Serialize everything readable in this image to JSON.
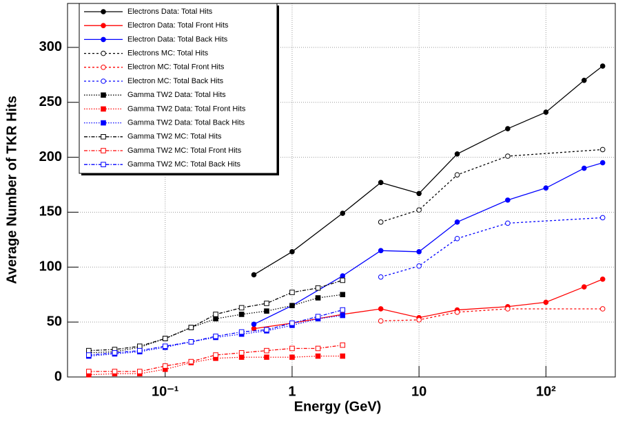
{
  "chart_data": {
    "type": "line",
    "x_label": "Energy (GeV)",
    "y_label": "Average Number of TKR Hits",
    "xlog": true,
    "grid": true,
    "legend": "top-left",
    "xlim": [
      0.017,
      352
    ],
    "ylim": [
      0,
      340
    ],
    "xticks": [
      {
        "value": 0.1,
        "label": "10⁻¹"
      },
      1,
      10,
      {
        "value": 100,
        "label": "10²"
      }
    ],
    "yticks": [
      0,
      50,
      100,
      150,
      200,
      250,
      300
    ],
    "series": [
      {
        "name": "Electrons Data: Total Hits",
        "color": "#000000",
        "dash": "solid",
        "marker": "circle",
        "x": [
          0.5,
          1,
          2.5,
          5,
          10,
          20,
          50,
          100,
          200,
          280
        ],
        "values": [
          93,
          114,
          149,
          177,
          167,
          203,
          226,
          241,
          270,
          283
        ]
      },
      {
        "name": "Electron Data: Total Front Hits",
        "color": "#ff0000",
        "dash": "solid",
        "marker": "circle",
        "x": [
          0.5,
          1,
          2.5,
          5,
          10,
          20,
          50,
          100,
          200,
          280
        ],
        "values": [
          44,
          49,
          57,
          62,
          54,
          61,
          64,
          68,
          82,
          89
        ]
      },
      {
        "name": "Electron Data: Total Back Hits",
        "color": "#0000ff",
        "dash": "solid",
        "marker": "circle",
        "x": [
          0.5,
          1,
          2.5,
          5,
          10,
          20,
          50,
          100,
          200,
          280
        ],
        "values": [
          48,
          65,
          92,
          115,
          114,
          141,
          161,
          172,
          190,
          195
        ]
      },
      {
        "name": "Electrons MC: Total Hits",
        "color": "#000000",
        "dash": "dashed",
        "marker": "open-circle",
        "x": [
          5,
          10,
          20,
          50,
          280
        ],
        "values": [
          141,
          152,
          184,
          201,
          207
        ]
      },
      {
        "name": "Electron MC: Total Front Hits",
        "color": "#ff0000",
        "dash": "dashed",
        "marker": "open-circle",
        "x": [
          5,
          10,
          20,
          50,
          280
        ],
        "values": [
          51,
          52,
          59,
          62,
          62
        ]
      },
      {
        "name": "Electron MC: Total Back Hits",
        "color": "#0000ff",
        "dash": "dashed",
        "marker": "open-circle",
        "x": [
          5,
          10,
          20,
          50,
          280
        ],
        "values": [
          91,
          101,
          126,
          140,
          145
        ]
      },
      {
        "name": "Gamma TW2 Data: Total Hits",
        "color": "#000000",
        "dash": "dotted",
        "marker": "square",
        "x": [
          0.025,
          0.04,
          0.063,
          0.1,
          0.16,
          0.25,
          0.4,
          0.63,
          1,
          1.6,
          2.5
        ],
        "values": [
          22,
          23,
          27,
          35,
          45,
          53,
          57,
          60,
          65,
          72,
          75
        ]
      },
      {
        "name": "Gamma TW2 Data: Total Front Hits",
        "color": "#ff0000",
        "dash": "dotted",
        "marker": "square",
        "x": [
          0.025,
          0.04,
          0.063,
          0.1,
          0.16,
          0.25,
          0.4,
          0.63,
          1,
          1.6,
          2.5
        ],
        "values": [
          2,
          3,
          3,
          7,
          13,
          17,
          18,
          18,
          18,
          19,
          19
        ]
      },
      {
        "name": "Gamma TW2 Data: Total Back Hits",
        "color": "#0000ff",
        "dash": "dotted",
        "marker": "square",
        "x": [
          0.025,
          0.04,
          0.063,
          0.1,
          0.16,
          0.25,
          0.4,
          0.63,
          1,
          1.6,
          2.5
        ],
        "values": [
          19,
          21,
          23,
          27,
          32,
          36,
          39,
          42,
          47,
          53,
          56
        ]
      },
      {
        "name": "Gamma TW2 MC: Total Hits",
        "color": "#000000",
        "dash": "dashdot",
        "marker": "open-square",
        "x": [
          0.025,
          0.04,
          0.063,
          0.1,
          0.16,
          0.25,
          0.4,
          0.63,
          1,
          1.6,
          2.5
        ],
        "values": [
          24,
          25,
          28,
          35,
          45,
          57,
          63,
          67,
          77,
          81,
          88
        ]
      },
      {
        "name": "Gamma TW2 MC: Total Front Hits",
        "color": "#ff0000",
        "dash": "dashdot",
        "marker": "open-square",
        "x": [
          0.025,
          0.04,
          0.063,
          0.1,
          0.16,
          0.25,
          0.4,
          0.63,
          1,
          1.6,
          2.5
        ],
        "values": [
          5,
          5,
          5,
          10,
          14,
          20,
          22,
          24,
          26,
          26,
          29
        ]
      },
      {
        "name": "Gamma TW2 MC: Total Back Hits",
        "color": "#0000ff",
        "dash": "dashdot",
        "marker": "open-square",
        "x": [
          0.025,
          0.04,
          0.063,
          0.1,
          0.16,
          0.25,
          0.4,
          0.63,
          1,
          1.6,
          2.5
        ],
        "values": [
          20,
          22,
          24,
          28,
          32,
          37,
          41,
          43,
          49,
          55,
          61
        ]
      }
    ]
  }
}
